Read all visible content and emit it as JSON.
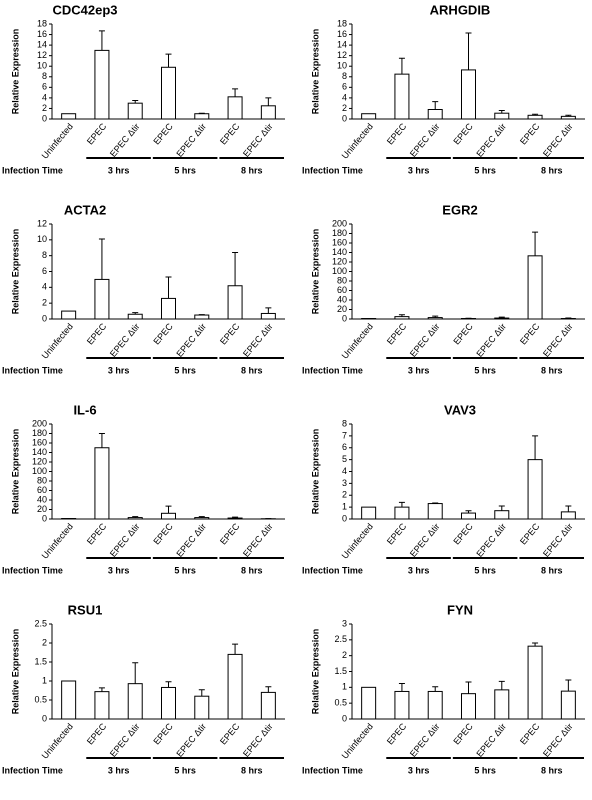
{
  "chart_data": [
    {
      "type": "bar",
      "title": "CDC42ep3",
      "y_label": "Relative Expression",
      "categories": [
        "Uninfected",
        "EPEC",
        "EPEC Δtir",
        "EPEC",
        "EPEC Δtir",
        "EPEC",
        "EPEC Δtir"
      ],
      "values": [
        1,
        13,
        3,
        9.8,
        1,
        4.2,
        2.5
      ],
      "errors": [
        null,
        3.7,
        0.5,
        2.5,
        0.1,
        1.5,
        1.5
      ],
      "color": "#ffffff",
      "ylim": [
        0,
        18
      ],
      "yticks": [
        0,
        2,
        4,
        6,
        8,
        10,
        12,
        14,
        16,
        18
      ],
      "group_label": "Infection Time",
      "groups": [
        "3 hrs",
        "5 hrs",
        "8 hrs"
      ]
    },
    {
      "type": "bar",
      "title": "ARHGDIB",
      "y_label": "Relative Expression",
      "categories": [
        "Uninfected",
        "EPEC",
        "EPEC Δtir",
        "EPEC",
        "EPEC Δtir",
        "EPEC",
        "EPEC Δtir"
      ],
      "values": [
        1,
        8.5,
        1.8,
        9.3,
        1.1,
        0.7,
        0.5
      ],
      "errors": [
        null,
        3,
        1.5,
        7,
        0.5,
        0.2,
        0.2
      ],
      "color": "#ffffff",
      "ylim": [
        0,
        18
      ],
      "yticks": [
        0,
        2,
        4,
        6,
        8,
        10,
        12,
        14,
        16,
        18
      ],
      "group_label": "Infection Time",
      "groups": [
        "3 hrs",
        "5 hrs",
        "8 hrs"
      ]
    },
    {
      "type": "bar",
      "title": "ACTA2",
      "y_label": "Relative Expression",
      "categories": [
        "Uninfected",
        "EPEC",
        "EPEC Δtir",
        "EPEC",
        "EPEC Δtir",
        "EPEC",
        "EPEC Δtir"
      ],
      "values": [
        1,
        5,
        0.6,
        2.6,
        0.5,
        4.2,
        0.7
      ],
      "errors": [
        null,
        5.1,
        0.2,
        2.7,
        0.05,
        4.2,
        0.7
      ],
      "color": "#ffffff",
      "ylim": [
        0,
        12
      ],
      "yticks": [
        0,
        2,
        4,
        6,
        8,
        10,
        12
      ],
      "group_label": "Infection Time",
      "groups": [
        "3 hrs",
        "5 hrs",
        "8 hrs"
      ]
    },
    {
      "type": "bar",
      "title": "EGR2",
      "y_label": "Relative Expression",
      "categories": [
        "Uninfected",
        "EPEC",
        "EPEC Δtir",
        "EPEC",
        "EPEC Δtir",
        "EPEC",
        "EPEC Δtir"
      ],
      "values": [
        1,
        5,
        3,
        1,
        2,
        133,
        1
      ],
      "errors": [
        null,
        4,
        3,
        0.5,
        2,
        50,
        1
      ],
      "color": "#ffffff",
      "ylim": [
        0,
        200
      ],
      "yticks": [
        0,
        20,
        40,
        60,
        80,
        100,
        120,
        140,
        160,
        180,
        200
      ],
      "group_label": "Infection Time",
      "groups": [
        "3 hrs",
        "5 hrs",
        "8 hrs"
      ]
    },
    {
      "type": "bar",
      "title": "IL-6",
      "y_label": "Relative Expression",
      "categories": [
        "Uninfected",
        "EPEC",
        "EPEC Δtir",
        "EPEC",
        "EPEC Δtir",
        "EPEC",
        "EPEC Δtir"
      ],
      "values": [
        1,
        150,
        3,
        12,
        3,
        2,
        0.5
      ],
      "errors": [
        null,
        30,
        2,
        15,
        2,
        2,
        0.2
      ],
      "color": "#ffffff",
      "ylim": [
        0,
        200
      ],
      "yticks": [
        0,
        20,
        40,
        60,
        80,
        100,
        120,
        140,
        160,
        180,
        200
      ],
      "group_label": "Infection Time",
      "groups": [
        "3 hrs",
        "5 hrs",
        "8 hrs"
      ]
    },
    {
      "type": "bar",
      "title": "VAV3",
      "y_label": "Relative Expression",
      "categories": [
        "Uninfected",
        "EPEC",
        "EPEC Δtir",
        "EPEC",
        "EPEC Δtir",
        "EPEC",
        "EPEC Δtir"
      ],
      "values": [
        1,
        1,
        1.3,
        0.5,
        0.7,
        5,
        0.6
      ],
      "errors": [
        null,
        0.4,
        0.05,
        0.2,
        0.4,
        2,
        0.5
      ],
      "color": "#ffffff",
      "ylim": [
        0,
        8
      ],
      "yticks": [
        0,
        1,
        2,
        3,
        4,
        5,
        6,
        7,
        8
      ],
      "group_label": "Infection Time",
      "groups": [
        "3 hrs",
        "5 hrs",
        "8 hrs"
      ]
    },
    {
      "type": "bar",
      "title": "RSU1",
      "y_label": "Relative Expression",
      "categories": [
        "Uninfected",
        "EPEC",
        "EPEC Δtir",
        "EPEC",
        "EPEC Δtir",
        "EPEC",
        "EPEC Δtir"
      ],
      "values": [
        1,
        0.72,
        0.93,
        0.83,
        0.6,
        1.7,
        0.7
      ],
      "errors": [
        null,
        0.1,
        0.55,
        0.15,
        0.17,
        0.27,
        0.15
      ],
      "color": "#ffffff",
      "ylim": [
        0,
        2.5
      ],
      "yticks": [
        0,
        0.5,
        1,
        1.5,
        2,
        2.5
      ],
      "group_label": "Infection Time",
      "groups": [
        "3 hrs",
        "5 hrs",
        "8 hrs"
      ]
    },
    {
      "type": "bar",
      "title": "FYN",
      "y_label": "Relative Expression",
      "categories": [
        "Uninfected",
        "EPEC",
        "EPEC Δtir",
        "EPEC",
        "EPEC Δtir",
        "EPEC",
        "EPEC Δtir"
      ],
      "values": [
        1,
        0.87,
        0.87,
        0.8,
        0.92,
        2.3,
        0.88
      ],
      "errors": [
        null,
        0.25,
        0.15,
        0.37,
        0.27,
        0.1,
        0.35
      ],
      "color": "#ffffff",
      "ylim": [
        0,
        3
      ],
      "yticks": [
        0,
        0.5,
        1,
        1.5,
        2,
        2.5,
        3
      ],
      "group_label": "Infection Time",
      "groups": [
        "3 hrs",
        "5 hrs",
        "8 hrs"
      ]
    }
  ]
}
